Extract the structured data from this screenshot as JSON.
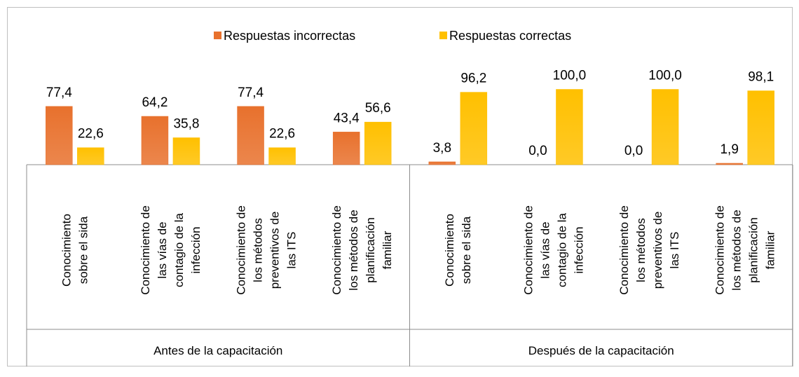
{
  "chart_data": {
    "type": "bar",
    "groups": [
      "Antes de la capacitación",
      "Después de la capacitación"
    ],
    "categories": [
      "Conocimiento\nsobre el sida",
      "Conocimiento de\nlas vías de\ncontagio de la\ninfección",
      "Conocimiento de\nlos métodos\npreventivos  de\nlas ITS",
      "Conocimiento de\nlos métodos de\nplanificación\nfamiliar",
      "Conocimiento\nsobre el sida",
      "Conocimiento de\nlas vías de\ncontagio de la\ninfección",
      "Conocimiento de\nlos métodos\npreventivos  de\nlas ITS",
      "Conocimiento de\nlos métodos de\nplanificación\nfamiliar"
    ],
    "series": [
      {
        "name": "Respuestas incorrectas",
        "color": "#e8712d",
        "values": [
          77.4,
          64.2,
          77.4,
          43.4,
          3.8,
          0.0,
          0.0,
          1.9
        ],
        "value_labels": [
          "77,4",
          "64,2",
          "77,4",
          "43,4",
          "3,8",
          "0,0",
          "0,0",
          "1,9"
        ]
      },
      {
        "name": "Respuestas correctas",
        "color": "#ffc000",
        "values": [
          22.6,
          35.8,
          22.6,
          56.6,
          96.2,
          100.0,
          100.0,
          98.1
        ],
        "value_labels": [
          "22,6",
          "35,8",
          "22,6",
          "56,6",
          "96,2",
          "100,0",
          "100,0",
          "98,1"
        ]
      }
    ],
    "ylim": [
      0,
      100
    ],
    "legend": "top"
  }
}
